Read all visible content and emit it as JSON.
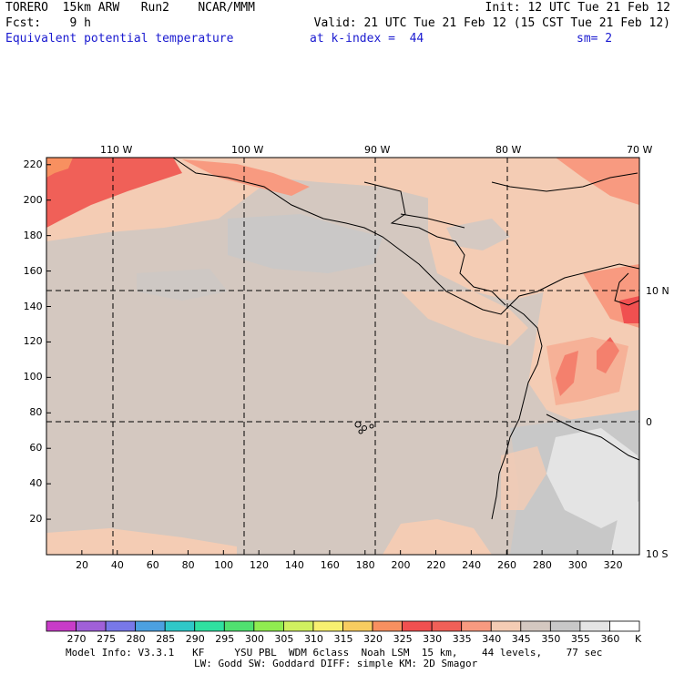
{
  "header": {
    "line1_left": "TORERO  15km ARW   Run2    NCAR/MMM",
    "line1_right": "Init: 12 UTC Tue 21 Feb 12",
    "line2_left": "Fcst:    9 h",
    "line2_right": "Valid: 21 UTC Tue 21 Feb 12 (15 CST Tue 21 Feb 12)",
    "field_name": "Equivalent potential temperature",
    "level": "at k-index =  44",
    "smoothing": "sm= 2"
  },
  "map": {
    "lon_labels": [
      "110 W",
      "100 W",
      "90 W",
      "80 W",
      "70 W"
    ],
    "lat_labels": [
      "10 N",
      "0",
      "10 S"
    ],
    "x_ticks": [
      "20",
      "40",
      "60",
      "80",
      "100",
      "120",
      "140",
      "160",
      "180",
      "200",
      "220",
      "240",
      "260",
      "280",
      "300",
      "320"
    ],
    "y_ticks": [
      "20",
      "40",
      "60",
      "80",
      "100",
      "120",
      "140",
      "160",
      "180",
      "200",
      "220"
    ]
  },
  "colorbar": {
    "levels": [
      "270",
      "275",
      "280",
      "285",
      "290",
      "295",
      "300",
      "305",
      "310",
      "315",
      "320",
      "325",
      "330",
      "335",
      "340",
      "345",
      "350",
      "355",
      "360"
    ],
    "unit": "K",
    "colors": [
      "#c83cc8",
      "#a060d8",
      "#7878e8",
      "#4ca0e0",
      "#30c8c8",
      "#30e0a0",
      "#50e070",
      "#90ec50",
      "#d0f060",
      "#f8f070",
      "#f8cc60",
      "#f89060",
      "#f05050",
      "#f06058",
      "#f89a80",
      "#f4ccb4",
      "#d4c8c0",
      "#c8c8c8",
      "#e4e4e4",
      "#ffffff"
    ]
  },
  "footer": {
    "line1": "Model Info: V3.3.1   KF     YSU PBL  WDM 6class  Noah LSM  15 km,    44 levels,    77 sec",
    "line2": "LW: Godd SW: Goddard DIFF: simple KM: 2D Smagor"
  }
}
